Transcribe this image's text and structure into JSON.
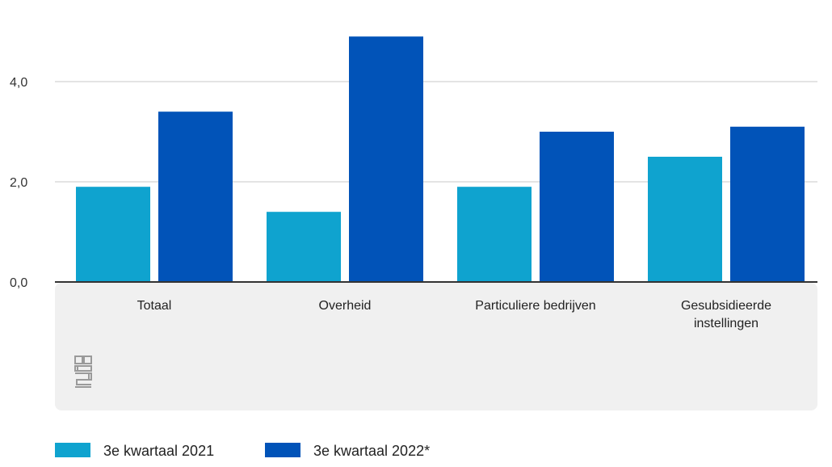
{
  "chart_data": {
    "type": "bar",
    "categories": [
      "Totaal",
      "Overheid",
      "Particuliere bedrijven",
      "Gesubsidieerde instellingen"
    ],
    "category_lines": [
      [
        "Totaal"
      ],
      [
        "Overheid"
      ],
      [
        "Particuliere bedrijven"
      ],
      [
        "Gesubsidieerde",
        "instellingen"
      ]
    ],
    "series": [
      {
        "name": "3e kwartaal 2021",
        "color": "#0fa3cf",
        "values": [
          1.9,
          1.4,
          1.9,
          2.5
        ]
      },
      {
        "name": "3e kwartaal 2022*",
        "color": "#0153b8",
        "values": [
          3.4,
          4.9,
          3.0,
          3.1
        ]
      }
    ],
    "yticks": [
      "0,0",
      "2,0",
      "4,0"
    ],
    "ytick_values": [
      0,
      2,
      4
    ],
    "ylim": [
      0,
      5
    ],
    "grid": true,
    "legend_position": "bottom-left",
    "logo_icon": "cbs-logo-icon"
  }
}
